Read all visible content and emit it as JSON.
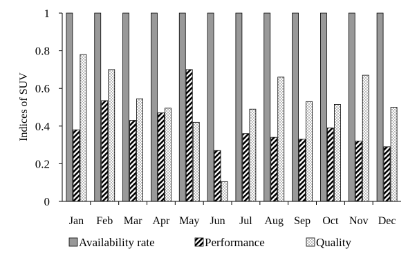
{
  "chart_data": {
    "type": "bar",
    "ylabel": "Indices of  SUV",
    "ylim": [
      0,
      1
    ],
    "yticks": [
      "0",
      "0.2",
      "0.4",
      "0.6",
      "0.8",
      "1"
    ],
    "grid": false,
    "legend_position": "bottom",
    "categories": [
      "Jan",
      "Feb",
      "Mar",
      "Apr",
      "May",
      "Jun",
      "Jul",
      "Aug",
      "Sep",
      "Oct",
      "Nov",
      "Dec"
    ],
    "series": [
      {
        "name": "Availability rate",
        "pattern": "solid-gray",
        "values": [
          1,
          1,
          1,
          1,
          1,
          1,
          1,
          1,
          1,
          1,
          1,
          1
        ]
      },
      {
        "name": "Performance",
        "pattern": "diagonal-hatch",
        "values": [
          0.38,
          0.535,
          0.43,
          0.47,
          0.7,
          0.27,
          0.36,
          0.34,
          0.33,
          0.39,
          0.32,
          0.29
        ]
      },
      {
        "name": "Quality",
        "pattern": "dotted",
        "values": [
          0.78,
          0.7,
          0.545,
          0.495,
          0.42,
          0.105,
          0.49,
          0.66,
          0.53,
          0.515,
          0.67,
          0.5
        ]
      }
    ],
    "colors": {
      "axis": "#000000",
      "bar_fill": "#999999",
      "bar_stroke": "#000000"
    }
  }
}
